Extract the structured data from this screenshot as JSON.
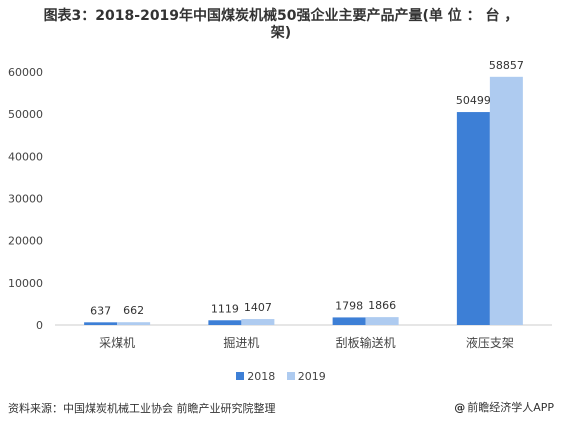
{
  "title": "图表3：2018-2019年中国煤炭机械50强企业主要产品产量(单 位 ： 台 ，架)",
  "title_lines": [
    "图表3：2018-2019年中国煤炭机械50强企业主要产品产量(单 位 ： 台 ，",
    "架)"
  ],
  "source": "资料来源：中国煤炭机械工业协会 前瞻产业研究院整理",
  "brand": "前瞻经济学人APP",
  "brand_icon": "at-sign-icon",
  "colors": {
    "series_2018": "#3d7fd6",
    "series_2019": "#aecbf0",
    "axis": "#cccccc",
    "text": "#444444"
  },
  "chart_data": {
    "type": "bar",
    "title": "图表3：2018-2019年中国煤炭机械50强企业主要产品产量(单 位 ： 台 ，架)",
    "categories": [
      "采煤机",
      "掘进机",
      "刮板输送机",
      "液压支架"
    ],
    "series": [
      {
        "name": "2018",
        "values": [
          637,
          1119,
          1798,
          50499
        ],
        "color": "#3d7fd6"
      },
      {
        "name": "2019",
        "values": [
          662,
          1407,
          1866,
          58857
        ],
        "color": "#aecbf0"
      }
    ],
    "ylim": [
      0,
      60000
    ],
    "yticks": [
      0,
      10000,
      20000,
      30000,
      40000,
      50000,
      60000
    ],
    "ytick_labels": [
      "0",
      "10000",
      "20000",
      "30000",
      "40000",
      "50000",
      "60000"
    ],
    "xlabel": "",
    "ylabel": "",
    "grid": false,
    "legend_position": "bottom"
  }
}
